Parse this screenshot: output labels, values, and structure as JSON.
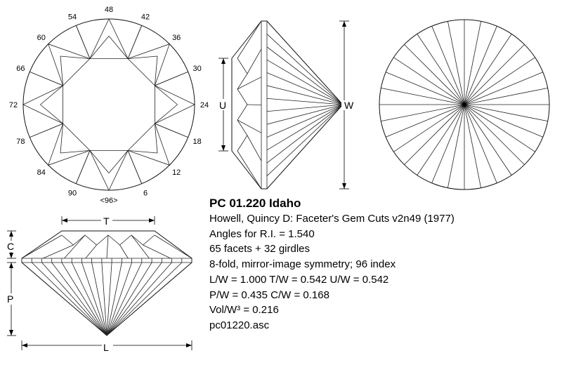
{
  "title": "PC 01.220 Idaho",
  "info_lines": [
    "Howell, Quincy D: Faceter's Gem Cuts v2n49 (1977)",
    "Angles for R.I. = 1.540",
    "65 facets + 32 girdles",
    "8-fold, mirror-image symmetry; 96 index",
    "L/W = 1.000 T/W = 0.542 U/W = 0.542",
    "P/W = 0.435 C/W = 0.168",
    "Vol/W³ = 0.216",
    "pc01220.asc"
  ],
  "index_labels": [
    "48",
    "42",
    "36",
    "30",
    "24",
    "18",
    "12",
    "6",
    "<96>",
    "90",
    "84",
    "78",
    "72",
    "66",
    "60",
    "54"
  ],
  "dimension_labels": {
    "width": "W",
    "table": "T",
    "culet_u": "U",
    "crown": "C",
    "pavilion": "P",
    "length": "L"
  }
}
